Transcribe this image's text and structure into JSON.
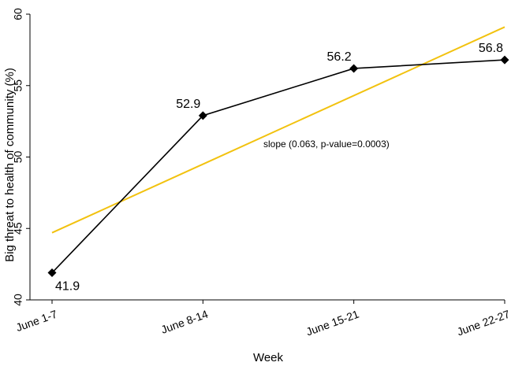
{
  "chart_data": {
    "type": "line",
    "title": "",
    "xlabel": "Week",
    "ylabel": "Big threat to health of community (%)",
    "categories": [
      "June 1-7",
      "June 8-14",
      "June 15-21",
      "June 22-27"
    ],
    "ylim": [
      40,
      60
    ],
    "yticks": [
      40,
      45,
      50,
      55,
      60
    ],
    "series": [
      {
        "name": "",
        "values": [
          41.9,
          52.9,
          56.2,
          56.8
        ],
        "labels": [
          "41.9",
          "52.9",
          "56.2",
          "56.8"
        ],
        "color": "#000000",
        "marker": "diamond"
      }
    ],
    "trend_line": {
      "start": 44.7,
      "end": 59.1,
      "color": "#f2c20f"
    },
    "annotation": "slope (0.063, p-value=0.0003)",
    "grid": false,
    "legend": "none"
  }
}
